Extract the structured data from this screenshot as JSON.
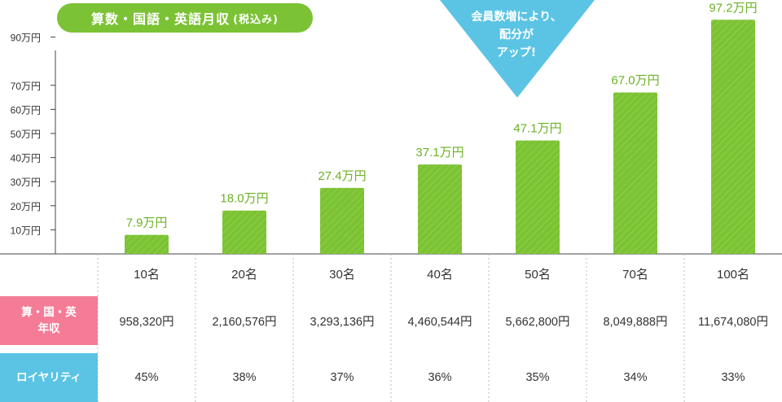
{
  "header": {
    "title": "算数・国語・英語月収",
    "title_note": "(税込み)"
  },
  "callout": {
    "line1": "会員数増により、",
    "line2": "配分が",
    "line3": "アップ!"
  },
  "colors": {
    "bar": "#7cc235",
    "bar_label": "#6bb224",
    "callout": "#5bc4e4",
    "pink": "#f47c97",
    "blue": "#5bc4e4"
  },
  "chart_data": {
    "type": "bar",
    "title": "算数・国語・英語月収(税込み)",
    "categories": [
      "10名",
      "20名",
      "30名",
      "40名",
      "50名",
      "70名",
      "100名"
    ],
    "values": [
      7.9,
      18.0,
      27.4,
      37.1,
      47.1,
      67.0,
      97.2
    ],
    "value_labels": [
      "7.9万円",
      "18.0万円",
      "27.4万円",
      "37.1万円",
      "47.1万円",
      "67.0万円",
      "97.2万円"
    ],
    "y_ticks": [
      "10万円",
      "20万円",
      "30万円",
      "40万円",
      "50万円",
      "60万円",
      "70万円",
      "90万円"
    ],
    "grid": false,
    "legend": "none"
  },
  "table": {
    "rows": [
      {
        "label_line1": "算・国・英",
        "label_line2": "年収",
        "values": [
          "958,320円",
          "2,160,576円",
          "3,293,136円",
          "4,460,544円",
          "5,662,800円",
          "8,049,888円",
          "11,674,080円"
        ]
      },
      {
        "label_line1": "ロイヤリティ",
        "label_line2": "",
        "values": [
          "45%",
          "38%",
          "37%",
          "36%",
          "35%",
          "34%",
          "33%"
        ]
      }
    ]
  }
}
